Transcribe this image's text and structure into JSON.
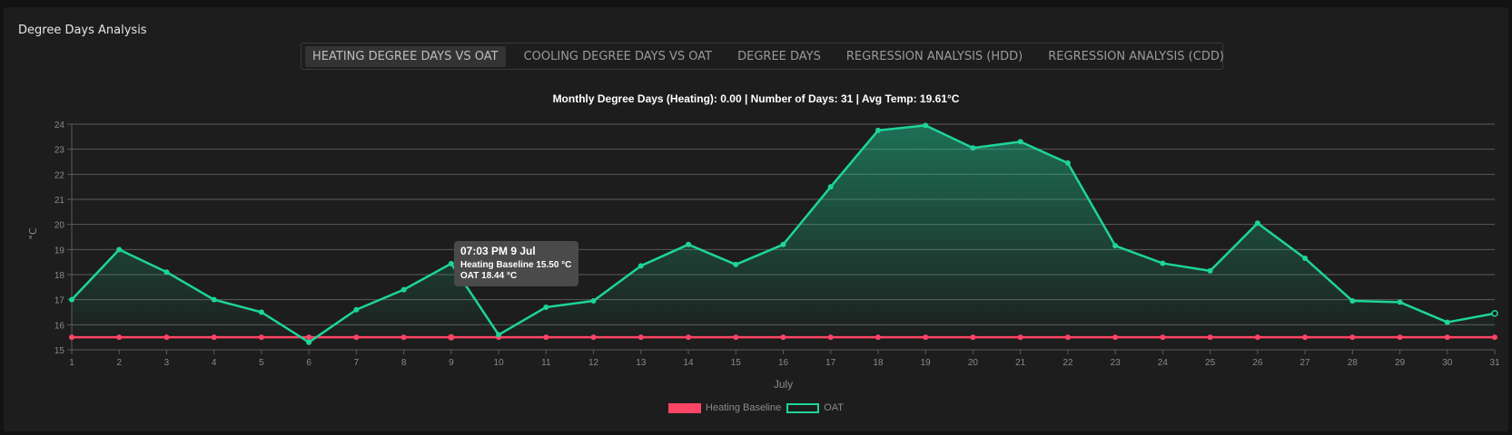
{
  "panel": {
    "title": "Degree Days Analysis"
  },
  "tabs": [
    {
      "label": "HEATING DEGREE DAYS VS OAT",
      "active": true
    },
    {
      "label": "COOLING DEGREE DAYS VS OAT",
      "active": false
    },
    {
      "label": "DEGREE DAYS",
      "active": false
    },
    {
      "label": "REGRESSION ANALYSIS (HDD)",
      "active": false
    },
    {
      "label": "REGRESSION ANALYSIS (CDD)",
      "active": false
    }
  ],
  "tooltip": {
    "title": "07:03 PM 9 Jul",
    "lines": [
      "Heating Baseline 15.50 °C",
      "OAT 18.44 °C"
    ]
  },
  "colors": {
    "baseline": "#ff4566",
    "oat": "#1ed49a",
    "grid": "#5a5a5a",
    "axis_text": "#8a8a8a"
  },
  "chart_data": {
    "type": "line",
    "title": "Monthly Degree Days (Heating): 0.00 | Number of Days: 31 | Avg Temp: 19.61°C",
    "xlabel": "July",
    "ylabel": "°C",
    "ylim": [
      15,
      24
    ],
    "yticks": [
      15,
      16,
      17,
      18,
      19,
      20,
      21,
      22,
      23,
      24
    ],
    "x": [
      1,
      2,
      3,
      4,
      5,
      6,
      7,
      8,
      9,
      10,
      11,
      12,
      13,
      14,
      15,
      16,
      17,
      18,
      19,
      20,
      21,
      22,
      23,
      24,
      25,
      26,
      27,
      28,
      29,
      30,
      31
    ],
    "grid": true,
    "legend_position": "bottom",
    "series": [
      {
        "name": "Heating Baseline",
        "values": [
          15.5,
          15.5,
          15.5,
          15.5,
          15.5,
          15.5,
          15.5,
          15.5,
          15.5,
          15.5,
          15.5,
          15.5,
          15.5,
          15.5,
          15.5,
          15.5,
          15.5,
          15.5,
          15.5,
          15.5,
          15.5,
          15.5,
          15.5,
          15.5,
          15.5,
          15.5,
          15.5,
          15.5,
          15.5,
          15.5,
          15.5
        ]
      },
      {
        "name": "OAT",
        "values": [
          17.0,
          19.0,
          18.1,
          17.0,
          16.5,
          15.3,
          16.6,
          17.4,
          18.44,
          15.6,
          16.7,
          16.95,
          18.35,
          19.2,
          18.4,
          19.2,
          21.5,
          23.75,
          23.95,
          23.05,
          23.3,
          22.45,
          19.15,
          18.45,
          18.15,
          20.05,
          18.65,
          16.95,
          16.9,
          16.1,
          16.45
        ]
      }
    ]
  }
}
